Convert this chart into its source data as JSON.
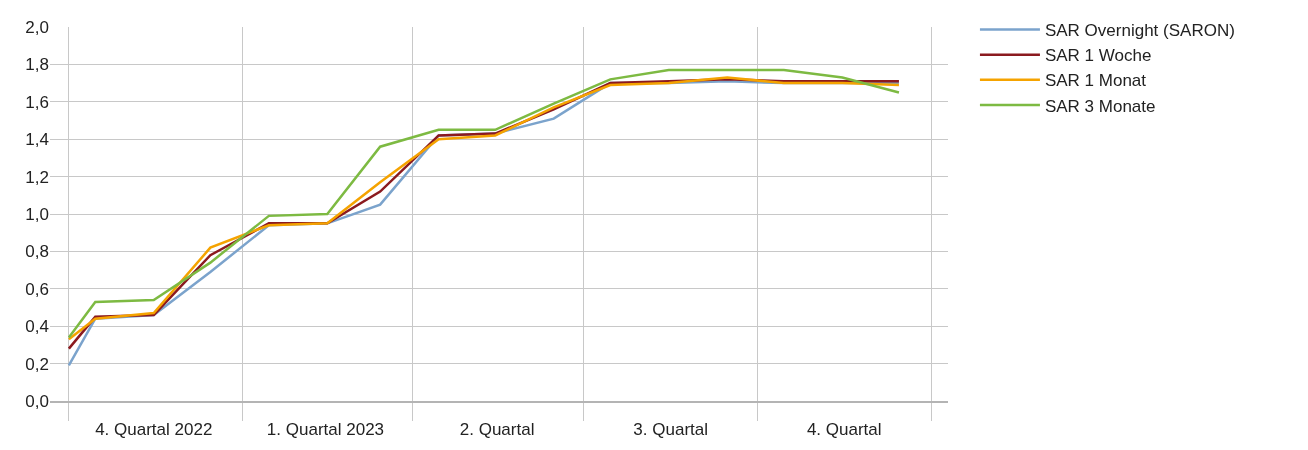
{
  "chart_data": {
    "type": "line",
    "x": [
      "2022-10-01",
      "2022-10-15",
      "2022-11-15",
      "2022-12-15",
      "2023-01-15",
      "2023-02-15",
      "2023-03-15",
      "2023-04-15",
      "2023-05-15",
      "2023-06-15",
      "2023-07-15",
      "2023-08-15",
      "2023-09-15",
      "2023-10-15",
      "2023-11-15",
      "2023-12-15"
    ],
    "series": [
      {
        "name": "SAR Overnight (SARON)",
        "color": "#7ba3cc",
        "values": [
          0.19,
          0.44,
          0.46,
          0.69,
          0.94,
          0.95,
          1.05,
          1.42,
          1.43,
          1.51,
          1.7,
          1.7,
          1.71,
          1.7,
          1.7,
          1.7
        ]
      },
      {
        "name": "SAR 1 Woche",
        "color": "#8b1a1f",
        "values": [
          0.28,
          0.45,
          0.46,
          0.78,
          0.95,
          0.95,
          1.12,
          1.42,
          1.43,
          1.56,
          1.7,
          1.71,
          1.72,
          1.71,
          1.71,
          1.71
        ]
      },
      {
        "name": "SAR 1 Monat",
        "color": "#f5a300",
        "values": [
          0.33,
          0.44,
          0.47,
          0.82,
          0.94,
          0.95,
          1.17,
          1.4,
          1.42,
          1.57,
          1.69,
          1.7,
          1.73,
          1.7,
          1.7,
          1.69
        ]
      },
      {
        "name": "SAR 3 Monate",
        "color": "#7dba42",
        "values": [
          0.34,
          0.53,
          0.54,
          0.74,
          0.99,
          1.0,
          1.36,
          1.45,
          1.45,
          1.59,
          1.72,
          1.77,
          1.77,
          1.77,
          1.73,
          1.65
        ]
      }
    ],
    "xlim": [
      "2022-09-21",
      "2024-01-10"
    ],
    "xticks": [
      {
        "value": "2022-10-01",
        "label": null
      },
      {
        "value": "2023-01-01",
        "label": null
      },
      {
        "value": "2023-04-01",
        "label": null
      },
      {
        "value": "2023-07-01",
        "label": null
      },
      {
        "value": "2023-10-01",
        "label": null
      },
      {
        "value": "2024-01-01",
        "label": null
      },
      {
        "value": "2022-11-15",
        "label": "4. Quartal 2022"
      },
      {
        "value": "2023-02-14",
        "label": "1. Quartal 2023"
      },
      {
        "value": "2023-05-16",
        "label": "2. Quartal"
      },
      {
        "value": "2023-08-16",
        "label": "3. Quartal"
      },
      {
        "value": "2023-11-16",
        "label": "4. Quartal"
      }
    ],
    "ylim": [
      0,
      2.0
    ],
    "yticks": [
      {
        "value": 0,
        "label": "0,0"
      },
      {
        "value": 0.2,
        "label": "0,2"
      },
      {
        "value": 0.4,
        "label": "0,4"
      },
      {
        "value": 0.6,
        "label": "0,6"
      },
      {
        "value": 0.8,
        "label": "0,8"
      },
      {
        "value": 1.0,
        "label": "1,0"
      },
      {
        "value": 1.2,
        "label": "1,2"
      },
      {
        "value": 1.4,
        "label": "1,4"
      },
      {
        "value": 1.6,
        "label": "1,6"
      },
      {
        "value": 1.8,
        "label": "1,8"
      },
      {
        "value": 2.0,
        "label": "2,0"
      }
    ],
    "grid": true,
    "legend": "top right"
  }
}
